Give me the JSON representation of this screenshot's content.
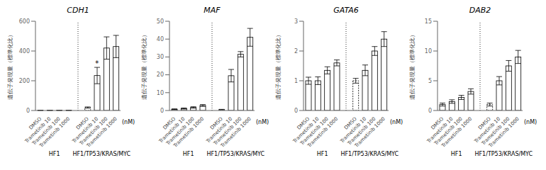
{
  "chart_data": [
    {
      "type": "bar",
      "title": "CDH1",
      "x_label": "(nM)",
      "y_label": "遺伝子発現量（標準化比）",
      "categories": [
        "DMSO",
        "Trametinib 10",
        "Trametinib 100",
        "Trametinib 1000",
        "DMSO",
        "Trametinib 10",
        "Trametinib 100",
        "Trametinib 1000"
      ],
      "group_labels": [
        "HF1",
        "HF1/TP53/KRAS/MYC"
      ],
      "values": [
        1,
        1,
        1,
        1,
        20,
        235,
        420,
        430
      ],
      "errors": [
        0.5,
        0.5,
        0.5,
        0.5,
        4,
        55,
        75,
        75
      ],
      "color": "#ffffff",
      "ylim": [
        0,
        600
      ],
      "yticks": [
        0,
        200,
        400,
        600
      ],
      "grid": false,
      "annotations": [
        {
          "text": "*",
          "category_index": 5
        }
      ]
    },
    {
      "type": "bar",
      "title": "MAF",
      "x_label": "(nM)",
      "y_label": "遺伝子発現量（標準化比）",
      "categories": [
        "DMSO",
        "Trametinib 10",
        "Trametinib 100",
        "Trametinib 1000",
        "DMSO",
        "Trametinib 10",
        "Trametinib 100",
        "Trametinib 1000"
      ],
      "group_labels": [
        "HF1",
        "HF1/TP53/KRAS/MYC"
      ],
      "values": [
        0.7,
        1.1,
        1.7,
        2.8,
        0.5,
        19.5,
        31.5,
        41
      ],
      "errors": [
        0.2,
        0.3,
        0.4,
        0.5,
        0.15,
        3.5,
        1.5,
        5
      ],
      "color": "#ffffff",
      "ylim": [
        0,
        50
      ],
      "yticks": [
        0,
        10,
        20,
        30,
        40,
        50
      ],
      "grid": false
    },
    {
      "type": "bar",
      "title": "GATA6",
      "x_label": "(nM)",
      "y_label": "遺伝子発現量（標準化比）",
      "categories": [
        "DMSO",
        "Trametinib 10",
        "Trametinib 100",
        "Trametinib 1000",
        "DMSO",
        "Trametinib 10",
        "Trametinib 100",
        "Trametinib 1000"
      ],
      "group_labels": [
        "HF1",
        "HF1/TP53/KRAS/MYC"
      ],
      "values": [
        1.0,
        1.0,
        1.35,
        1.6,
        1.0,
        1.35,
        2.0,
        2.4
      ],
      "errors": [
        0.12,
        0.13,
        0.12,
        0.1,
        0.08,
        0.18,
        0.15,
        0.25
      ],
      "color": "#ffffff",
      "ylim": [
        0,
        3
      ],
      "yticks": [
        0,
        1,
        2,
        3
      ],
      "grid": false
    },
    {
      "type": "bar",
      "title": "DAB2",
      "x_label": "(nM)",
      "y_label": "遺伝子発現量（標準化比）",
      "categories": [
        "DMSO",
        "Trametinib 10",
        "Trametinib 100",
        "Trametinib 1000",
        "DMSO",
        "Trametinib 10",
        "Trametinib 100",
        "Trametinib 1000"
      ],
      "group_labels": [
        "HF1",
        "HF1/TP53/KRAS/MYC"
      ],
      "values": [
        1.0,
        1.5,
        2.2,
        3.2,
        1.0,
        5.0,
        7.5,
        9.0
      ],
      "errors": [
        0.25,
        0.3,
        0.35,
        0.45,
        0.25,
        0.7,
        0.9,
        1.1
      ],
      "color": "#ffffff",
      "ylim": [
        0,
        15
      ],
      "yticks": [
        0,
        5,
        10,
        15
      ],
      "grid": false
    }
  ]
}
